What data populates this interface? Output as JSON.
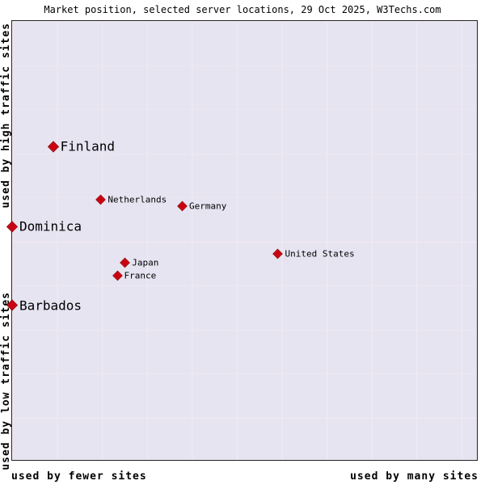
{
  "title": "Market position, selected server locations, 29 Oct 2025, W3Techs.com",
  "source": "W3Techs.com",
  "axes": {
    "y_top_label": "used by high traffic sites",
    "y_bottom_label": "used by low traffic sites",
    "x_left_label": "used by fewer sites",
    "x_right_label": "used by many sites"
  },
  "colors": {
    "marker": "#cc0011",
    "plot_background": "#e6e4f1",
    "grid_line": "#f4eaf2",
    "text": "#000000"
  },
  "chart_data": {
    "type": "scatter",
    "title": "Market position, selected server locations, 29 Oct 2025, W3Techs.com",
    "x_axis": {
      "qualitative": true,
      "left": "used by fewer sites",
      "right": "used by many sites"
    },
    "y_axis": {
      "qualitative": true,
      "top": "used by high traffic sites",
      "bottom": "used by low traffic sites"
    },
    "grid": true,
    "legend": false,
    "points": [
      {
        "label": "Finland",
        "x_pct": 8.8,
        "y_pct": 28.6,
        "emphasis": "large"
      },
      {
        "label": "Netherlands",
        "x_pct": 19.2,
        "y_pct": 40.7,
        "emphasis": "small"
      },
      {
        "label": "Germany",
        "x_pct": 36.7,
        "y_pct": 42.2,
        "emphasis": "small"
      },
      {
        "label": "Dominica",
        "x_pct": 0.0,
        "y_pct": 46.8,
        "emphasis": "large"
      },
      {
        "label": "United States",
        "x_pct": 57.3,
        "y_pct": 53.0,
        "emphasis": "small"
      },
      {
        "label": "Japan",
        "x_pct": 24.4,
        "y_pct": 55.0,
        "emphasis": "small"
      },
      {
        "label": "France",
        "x_pct": 22.7,
        "y_pct": 58.0,
        "emphasis": "small"
      },
      {
        "label": "Barbados",
        "x_pct": 0.0,
        "y_pct": 64.8,
        "emphasis": "large"
      }
    ]
  }
}
